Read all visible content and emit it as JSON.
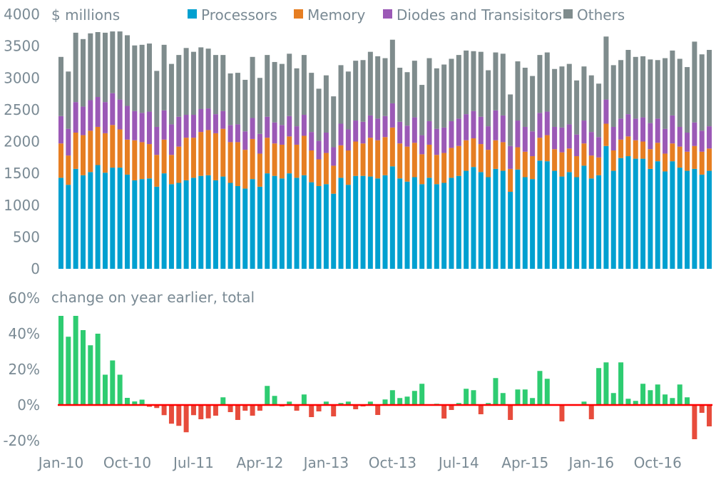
{
  "chart_data": [
    {
      "type": "bar",
      "stacked": true,
      "unit_label": "$ millions",
      "ylim": [
        0,
        4000
      ],
      "yticks": [
        0,
        500,
        1000,
        1500,
        2000,
        2500,
        3000,
        3500,
        4000
      ],
      "grid": false,
      "legend": "top",
      "start_month": "Jan-10",
      "series": [
        {
          "name": "Processors",
          "color": "#00a0d0",
          "values": [
            1430,
            1320,
            1570,
            1470,
            1520,
            1630,
            1510,
            1590,
            1590,
            1480,
            1390,
            1410,
            1420,
            1290,
            1500,
            1330,
            1350,
            1390,
            1430,
            1460,
            1470,
            1390,
            1450,
            1350,
            1300,
            1260,
            1410,
            1290,
            1500,
            1460,
            1420,
            1500,
            1430,
            1470,
            1360,
            1300,
            1330,
            1180,
            1430,
            1320,
            1460,
            1460,
            1450,
            1420,
            1470,
            1610,
            1420,
            1370,
            1440,
            1330,
            1430,
            1330,
            1350,
            1430,
            1460,
            1540,
            1600,
            1520,
            1440,
            1570,
            1540,
            1210,
            1560,
            1440,
            1410,
            1700,
            1690,
            1540,
            1450,
            1520,
            1440,
            1620,
            1420,
            1470,
            1930,
            1540,
            1740,
            1770,
            1730,
            1730,
            1570,
            1690,
            1530,
            1690,
            1590,
            1540,
            1570,
            1480,
            1540
          ]
        },
        {
          "name": "Memory",
          "color": "#e67e22",
          "values": [
            540,
            460,
            570,
            630,
            650,
            600,
            620,
            670,
            600,
            550,
            630,
            580,
            540,
            500,
            530,
            460,
            570,
            670,
            630,
            690,
            710,
            740,
            750,
            640,
            690,
            610,
            630,
            520,
            560,
            510,
            530,
            580,
            520,
            620,
            500,
            420,
            490,
            440,
            510,
            540,
            540,
            510,
            610,
            600,
            600,
            610,
            550,
            550,
            540,
            470,
            520,
            460,
            470,
            470,
            470,
            480,
            450,
            440,
            430,
            450,
            450,
            360,
            350,
            400,
            360,
            360,
            410,
            340,
            380,
            370,
            330,
            350,
            360,
            280,
            350,
            320,
            290,
            310,
            290,
            270,
            310,
            290,
            280,
            280,
            330,
            300,
            360,
            360,
            350
          ]
        },
        {
          "name": "Diodes and Transisitors",
          "color": "#9b59b6",
          "values": [
            430,
            420,
            480,
            450,
            480,
            470,
            490,
            500,
            470,
            530,
            460,
            460,
            510,
            440,
            460,
            480,
            470,
            360,
            360,
            360,
            340,
            300,
            280,
            270,
            280,
            290,
            330,
            310,
            330,
            330,
            310,
            320,
            290,
            330,
            290,
            290,
            320,
            290,
            340,
            330,
            330,
            340,
            350,
            340,
            330,
            380,
            340,
            330,
            400,
            300,
            370,
            410,
            400,
            420,
            430,
            410,
            430,
            430,
            370,
            470,
            420,
            360,
            420,
            390,
            390,
            390,
            370,
            350,
            390,
            380,
            340,
            360,
            370,
            320,
            380,
            370,
            330,
            350,
            340,
            380,
            410,
            380,
            390,
            440,
            310,
            300,
            370,
            330,
            350
          ]
        },
        {
          "name": "Others",
          "color": "#7f8c8d",
          "values": [
            930,
            900,
            1090,
            1060,
            1050,
            1020,
            1090,
            970,
            1070,
            1110,
            1030,
            1070,
            1070,
            880,
            1030,
            950,
            970,
            1050,
            990,
            970,
            940,
            930,
            880,
            810,
            810,
            810,
            960,
            880,
            970,
            950,
            960,
            980,
            910,
            940,
            930,
            820,
            900,
            800,
            920,
            910,
            940,
            970,
            1000,
            980,
            910,
            1000,
            850,
            840,
            890,
            790,
            990,
            950,
            990,
            980,
            1000,
            1000,
            940,
            1020,
            880,
            910,
            970,
            810,
            930,
            930,
            870,
            910,
            930,
            910,
            960,
            950,
            850,
            850,
            890,
            840,
            990,
            970,
            920,
            1010,
            970,
            960,
            1000,
            920,
            1110,
            1020,
            1070,
            1030,
            1270,
            1200,
            1200
          ]
        }
      ]
    },
    {
      "type": "bar",
      "title": "change on year earlier, total",
      "ylim": [
        -20,
        60
      ],
      "yticks": [
        -20,
        0,
        20,
        40,
        60
      ],
      "ytick_labels": [
        "-20%",
        "0%",
        "20%",
        "40%",
        "60%"
      ],
      "positive_color": "#2ecc71",
      "negative_color": "#e74c3c",
      "zero_line_color": "#ff0000",
      "start_month": "Jan-10",
      "values": [
        50,
        38.3,
        50,
        42,
        33.5,
        40,
        17,
        25,
        17,
        4,
        2,
        3,
        -1,
        -1.7,
        -5.7,
        -10.5,
        -11.7,
        -15.3,
        -5.7,
        -8,
        -7.5,
        -6,
        4.3,
        -4,
        -8.4,
        -3.2,
        -6,
        -3.2,
        10.7,
        5.1,
        -0.8,
        1.9,
        -3.2,
        5.9,
        -6.8,
        -3.6,
        1.9,
        -6.4,
        1.1,
        1.9,
        -2.4,
        -0.8,
        1.9,
        -5.6,
        3.1,
        8.3,
        3.9,
        4.7,
        7.9,
        11.9,
        0.2,
        0.7,
        -7.6,
        -2.8,
        1.1,
        9.1,
        8.3,
        -5.2,
        1.1,
        15.1,
        6.7,
        -8.4,
        8.7,
        8.7,
        3.9,
        19.1,
        14.7,
        0.2,
        -9.2,
        0.1,
        0.1,
        1.9,
        -8,
        20.7,
        23.9,
        6.7,
        23.9,
        3.5,
        2.3,
        11.9,
        8.3,
        11.5,
        5.9,
        3.9,
        11.5,
        4.3,
        -19.2,
        -4.4,
        -12
      ]
    }
  ],
  "xaxis": {
    "tick_every": 9,
    "labels": [
      "Jan-10",
      "Oct-10",
      "Jul-11",
      "Apr-12",
      "Jan-13",
      "Oct-13",
      "Jul-14",
      "Apr-15",
      "Jan-16",
      "Oct-16"
    ]
  }
}
